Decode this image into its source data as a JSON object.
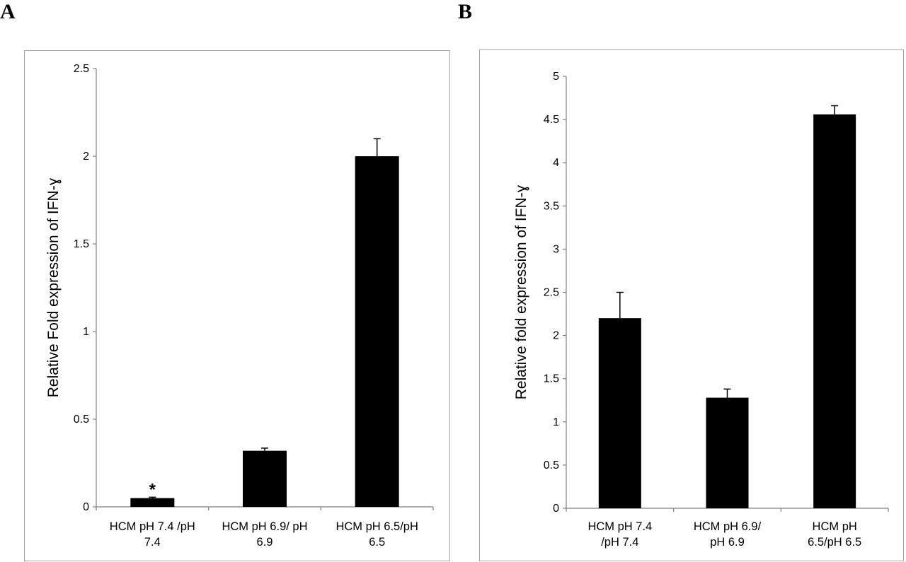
{
  "panels": {
    "a": {
      "letter": "A"
    },
    "b": {
      "letter": "B"
    }
  },
  "colors": {
    "bar": "#000000",
    "axis": "#7f7f7f",
    "frame": "#a6a6a6"
  },
  "chart_data": [
    {
      "type": "bar",
      "panel": "A",
      "title": "",
      "ylabel": "Relative  Fold expression of IFN-ɣ",
      "xlabel": "",
      "ylim": [
        0,
        2.5
      ],
      "yticks": [
        "0",
        "0.5",
        "1",
        "1.5",
        "2",
        "2.5"
      ],
      "ytick_values": [
        0,
        0.5,
        1,
        1.5,
        2,
        2.5
      ],
      "categories": [
        [
          "HCM pH 7.4 /pH",
          "7.4"
        ],
        [
          "HCM pH 6.9/ pH",
          "6.9"
        ],
        [
          "HCM pH 6.5/pH",
          "6.5"
        ]
      ],
      "values": [
        0.05,
        0.32,
        2.0
      ],
      "errors": [
        0.005,
        0.015,
        0.1
      ],
      "annotations": [
        "*",
        "",
        ""
      ]
    },
    {
      "type": "bar",
      "panel": "B",
      "title": "",
      "ylabel": "Relative fold expression of IFN-ɣ",
      "xlabel": "",
      "ylim": [
        0,
        5
      ],
      "yticks": [
        "0",
        "0.5",
        "1",
        "1.5",
        "2",
        "2.5",
        "3",
        "3.5",
        "4",
        "4.5",
        "5"
      ],
      "ytick_values": [
        0,
        0.5,
        1,
        1.5,
        2,
        2.5,
        3,
        3.5,
        4,
        4.5,
        5
      ],
      "categories": [
        [
          "HCM pH 7.4",
          "/pH 7.4"
        ],
        [
          "HCM pH 6.9/",
          "pH 6.9"
        ],
        [
          "HCM pH",
          "6.5/pH 6.5"
        ]
      ],
      "values": [
        2.2,
        1.28,
        4.56
      ],
      "errors": [
        0.3,
        0.1,
        0.1
      ],
      "annotations": [
        "",
        "",
        ""
      ]
    }
  ]
}
